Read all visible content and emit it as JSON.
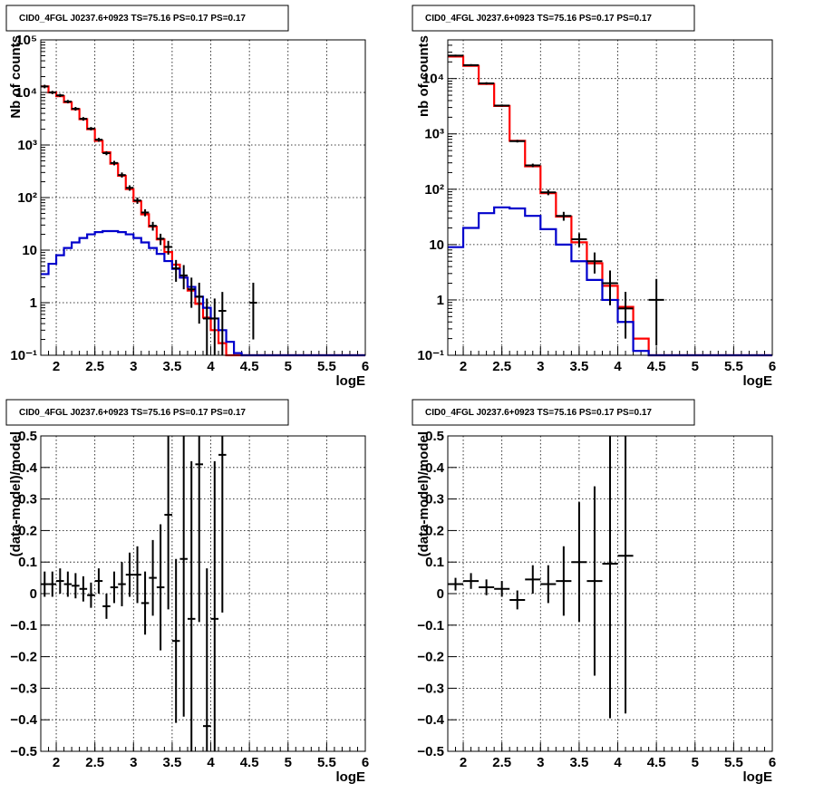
{
  "colors": {
    "total_model": "#ff0000",
    "source_model": "#0000cc",
    "data": "#000000",
    "background": "#ffffff"
  },
  "chart_data": [
    {
      "type": "step-histogram",
      "title": "CID0_4FGL J0237.6+0923 TS=75.16 PS=0.17 PS=0.17",
      "xlabel": "logE",
      "ylabel": "Nb of counts",
      "xlim": [
        1.8,
        6.0
      ],
      "ylim": [
        0.1,
        100000
      ],
      "yscale": "log",
      "grid": true,
      "x_ticks": [
        "2",
        "2.5",
        "3",
        "3.5",
        "4",
        "4.5",
        "5",
        "5.5",
        "6"
      ],
      "y_ticks": [
        "10⁻¹",
        "1",
        "10",
        "10²",
        "10³",
        "10⁴",
        "10⁵"
      ],
      "bin_edges": [
        1.8,
        1.9,
        2.0,
        2.1,
        2.2,
        2.3,
        2.4,
        2.5,
        2.6,
        2.7,
        2.8,
        2.9,
        3.0,
        3.1,
        3.2,
        3.3,
        3.4,
        3.5,
        3.6,
        3.7,
        3.8,
        3.9,
        4.0,
        4.1,
        4.2,
        4.3,
        4.4,
        4.5,
        4.6,
        4.7,
        4.8,
        4.9,
        5.0,
        5.1,
        5.2,
        5.3,
        5.4,
        5.5,
        5.6,
        5.7,
        5.8,
        5.9,
        6.0
      ],
      "series": [
        {
          "role": "total_model",
          "values": [
            13000,
            10000,
            8500,
            6500,
            4800,
            3100,
            2000,
            1200,
            730,
            440,
            260,
            145,
            85,
            48,
            28,
            16,
            9.2,
            5.3,
            3.0,
            1.7,
            0.95,
            0.52,
            0.3,
            0.17,
            0.1,
            0.1,
            0.1,
            0.1,
            0.1,
            0.1,
            0.1,
            0.1,
            0.1,
            0.1,
            0.1,
            0.1,
            0.1,
            0.1,
            0.1,
            0.1,
            0.1,
            0.1
          ]
        },
        {
          "role": "source_model",
          "values": [
            3.5,
            5.5,
            8,
            11,
            14,
            17,
            20,
            22,
            23,
            23,
            22,
            20,
            17,
            14,
            11,
            8.5,
            6.2,
            4.4,
            3.0,
            2.0,
            1.3,
            0.8,
            0.5,
            0.3,
            0.18,
            0.11,
            0.1,
            0.1,
            0.1,
            0.1,
            0.1,
            0.1,
            0.1,
            0.1,
            0.1,
            0.1,
            0.1,
            0.1,
            0.1,
            0.1,
            0.1,
            0.1
          ]
        },
        {
          "role": "data",
          "name": "",
          "points": [
            {
              "x": 1.85,
              "y": 13000,
              "lo": 12000,
              "hi": 14000
            },
            {
              "x": 1.95,
              "y": 10000,
              "lo": 9300,
              "hi": 10700
            },
            {
              "x": 2.05,
              "y": 8800,
              "lo": 8200,
              "hi": 9400
            },
            {
              "x": 2.15,
              "y": 6700,
              "lo": 6200,
              "hi": 7200
            },
            {
              "x": 2.25,
              "y": 4900,
              "lo": 4500,
              "hi": 5300
            },
            {
              "x": 2.35,
              "y": 3150,
              "lo": 2900,
              "hi": 3400
            },
            {
              "x": 2.45,
              "y": 2050,
              "lo": 1900,
              "hi": 2200
            },
            {
              "x": 2.55,
              "y": 1260,
              "lo": 1150,
              "hi": 1370
            },
            {
              "x": 2.65,
              "y": 700,
              "lo": 640,
              "hi": 760
            },
            {
              "x": 2.75,
              "y": 455,
              "lo": 410,
              "hi": 500
            },
            {
              "x": 2.85,
              "y": 268,
              "lo": 240,
              "hi": 300
            },
            {
              "x": 2.95,
              "y": 153,
              "lo": 135,
              "hi": 171
            },
            {
              "x": 3.05,
              "y": 88,
              "lo": 76,
              "hi": 100
            },
            {
              "x": 3.15,
              "y": 52,
              "lo": 44,
              "hi": 60
            },
            {
              "x": 3.25,
              "y": 29,
              "lo": 23.5,
              "hi": 34.5
            },
            {
              "x": 3.35,
              "y": 16.5,
              "lo": 12.5,
              "hi": 20.5
            },
            {
              "x": 3.45,
              "y": 11.5,
              "lo": 8.2,
              "hi": 15
            },
            {
              "x": 3.55,
              "y": 4.5,
              "lo": 2.5,
              "hi": 6.5
            },
            {
              "x": 3.65,
              "y": 3.3,
              "lo": 1.8,
              "hi": 5.2
            },
            {
              "x": 3.75,
              "y": 1.8,
              "lo": 0.8,
              "hi": 3.0
            },
            {
              "x": 3.85,
              "y": 1.3,
              "lo": 0.4,
              "hi": 2.4
            },
            {
              "x": 3.95,
              "y": 0.5,
              "lo": 0.1,
              "hi": 1.2
            },
            {
              "x": 4.05,
              "y": 0.5,
              "lo": 0.1,
              "hi": 1.2
            },
            {
              "x": 4.15,
              "y": 0.7,
              "lo": 0.1,
              "hi": 1.6
            },
            {
              "x": 4.55,
              "y": 1.0,
              "lo": 0.2,
              "hi": 2.4
            }
          ]
        }
      ]
    },
    {
      "type": "step-histogram",
      "title": "CID0_4FGL J0237.6+0923 TS=75.16 PS=0.17 PS=0.17",
      "xlabel": "logE",
      "ylabel": "nb of counts",
      "xlim": [
        1.8,
        6.0
      ],
      "ylim": [
        0.1,
        50000
      ],
      "yscale": "log",
      "grid": true,
      "x_ticks": [
        "2",
        "2.5",
        "3",
        "3.5",
        "4",
        "4.5",
        "5",
        "5.5",
        "6"
      ],
      "y_ticks": [
        "10⁻¹",
        "1",
        "10",
        "10²",
        "10³",
        "10⁴"
      ],
      "bin_edges": [
        1.8,
        2.0,
        2.2,
        2.4,
        2.6,
        2.8,
        3.0,
        3.2,
        3.4,
        3.6,
        3.8,
        4.0,
        4.2,
        4.4,
        4.6,
        4.8,
        5.0,
        5.2,
        5.4,
        5.6,
        5.8,
        6.0
      ],
      "series": [
        {
          "role": "total_model",
          "values": [
            25000,
            17000,
            8000,
            3200,
            750,
            260,
            85,
            32,
            11,
            4.6,
            1.8,
            0.75,
            0.2,
            0.1,
            0.1,
            0.1,
            0.1,
            0.1,
            0.1,
            0.1,
            0.1
          ]
        },
        {
          "role": "source_model",
          "values": [
            9,
            20,
            37,
            47,
            45,
            33,
            19,
            10,
            5,
            2.3,
            1.0,
            0.4,
            0.12,
            0.1,
            0.1,
            0.1,
            0.1,
            0.1,
            0.1,
            0.1,
            0.1
          ]
        },
        {
          "role": "data",
          "name": "",
          "points": [
            {
              "x": 1.9,
              "y": 26000,
              "lo": 25000,
              "hi": 27000
            },
            {
              "x": 2.1,
              "y": 17500,
              "lo": 16800,
              "hi": 18200
            },
            {
              "x": 2.3,
              "y": 8200,
              "lo": 7800,
              "hi": 8600
            },
            {
              "x": 2.5,
              "y": 3250,
              "lo": 3100,
              "hi": 3400
            },
            {
              "x": 2.7,
              "y": 740,
              "lo": 700,
              "hi": 780
            },
            {
              "x": 2.9,
              "y": 270,
              "lo": 250,
              "hi": 290
            },
            {
              "x": 3.1,
              "y": 88,
              "lo": 78,
              "hi": 98
            },
            {
              "x": 3.3,
              "y": 33,
              "lo": 27,
              "hi": 39
            },
            {
              "x": 3.5,
              "y": 12.5,
              "lo": 9,
              "hi": 16
            },
            {
              "x": 3.7,
              "y": 5,
              "lo": 3,
              "hi": 7.2
            },
            {
              "x": 3.9,
              "y": 2,
              "lo": 0.8,
              "hi": 3.4
            },
            {
              "x": 4.1,
              "y": 0.7,
              "lo": 0.2,
              "hi": 1.4
            },
            {
              "x": 4.5,
              "y": 1.0,
              "lo": 0.15,
              "hi": 2.4
            }
          ]
        }
      ]
    },
    {
      "type": "scatter-errorbars",
      "title": "CID0_4FGL J0237.6+0923 TS=75.16 PS=0.17 PS=0.17",
      "xlabel": "logE",
      "ylabel": "(data-model)/model",
      "xlim": [
        1.8,
        6.0
      ],
      "ylim": [
        -0.5,
        0.5
      ],
      "grid": true,
      "x_ticks": [
        "2",
        "2.5",
        "3",
        "3.5",
        "4",
        "4.5",
        "5",
        "5.5",
        "6"
      ],
      "y_ticks": [
        "−0.5",
        "−0.4",
        "−0.3",
        "−0.2",
        "−0.1",
        "0",
        "0.1",
        "0.2",
        "0.3",
        "0.4",
        "0.5"
      ],
      "xerr": 0.05,
      "points": [
        {
          "x": 1.85,
          "y": 0.03,
          "err": 0.04
        },
        {
          "x": 1.95,
          "y": 0.03,
          "err": 0.04
        },
        {
          "x": 2.05,
          "y": 0.04,
          "err": 0.04
        },
        {
          "x": 2.15,
          "y": 0.03,
          "err": 0.04
        },
        {
          "x": 2.25,
          "y": 0.025,
          "err": 0.04
        },
        {
          "x": 2.35,
          "y": 0.015,
          "err": 0.04
        },
        {
          "x": 2.45,
          "y": -0.005,
          "err": 0.04
        },
        {
          "x": 2.55,
          "y": 0.04,
          "err": 0.04
        },
        {
          "x": 2.65,
          "y": -0.04,
          "err": 0.04
        },
        {
          "x": 2.75,
          "y": 0.02,
          "err": 0.05
        },
        {
          "x": 2.85,
          "y": 0.03,
          "err": 0.07
        },
        {
          "x": 2.95,
          "y": 0.06,
          "err": 0.07
        },
        {
          "x": 3.05,
          "y": 0.06,
          "err": 0.09
        },
        {
          "x": 3.15,
          "y": -0.03,
          "err": 0.1
        },
        {
          "x": 3.25,
          "y": 0.05,
          "err": 0.12
        },
        {
          "x": 3.35,
          "y": 0.02,
          "err": 0.2
        },
        {
          "x": 3.45,
          "y": 0.25,
          "err": 0.3
        },
        {
          "x": 3.55,
          "y": -0.15,
          "err": 0.26
        },
        {
          "x": 3.65,
          "y": 0.11,
          "err": 0.5
        },
        {
          "x": 3.75,
          "y": -0.08,
          "err": 0.5
        },
        {
          "x": 3.85,
          "y": 0.41,
          "err": 0.5
        },
        {
          "x": 3.95,
          "y": -0.42,
          "err": 0.5
        },
        {
          "x": 4.05,
          "y": -0.08,
          "err": 0.5
        },
        {
          "x": 4.15,
          "y": 0.44,
          "err": 0.5
        }
      ]
    },
    {
      "type": "scatter-errorbars",
      "title": "CID0_4FGL J0237.6+0923 TS=75.16 PS=0.17 PS=0.17",
      "xlabel": "logE",
      "ylabel": "(data-model)/model",
      "xlim": [
        1.8,
        6.0
      ],
      "ylim": [
        -0.5,
        0.5
      ],
      "grid": true,
      "x_ticks": [
        "2",
        "2.5",
        "3",
        "3.5",
        "4",
        "4.5",
        "5",
        "5.5",
        "6"
      ],
      "y_ticks": [
        "−0.5",
        "−0.4",
        "−0.3",
        "−0.2",
        "−0.1",
        "0",
        "0.1",
        "0.2",
        "0.3",
        "0.4",
        "0.5"
      ],
      "xerr": 0.1,
      "points": [
        {
          "x": 1.9,
          "y": 0.03,
          "err": 0.02
        },
        {
          "x": 2.1,
          "y": 0.04,
          "err": 0.025
        },
        {
          "x": 2.3,
          "y": 0.02,
          "err": 0.025
        },
        {
          "x": 2.5,
          "y": 0.015,
          "err": 0.025
        },
        {
          "x": 2.7,
          "y": -0.02,
          "err": 0.03
        },
        {
          "x": 2.9,
          "y": 0.045,
          "err": 0.045
        },
        {
          "x": 3.1,
          "y": 0.03,
          "err": 0.06
        },
        {
          "x": 3.3,
          "y": 0.04,
          "err": 0.11
        },
        {
          "x": 3.5,
          "y": 0.1,
          "err": 0.19
        },
        {
          "x": 3.7,
          "y": 0.04,
          "err": 0.3
        },
        {
          "x": 3.9,
          "y": 0.095,
          "err": 0.49
        },
        {
          "x": 4.1,
          "y": 0.12,
          "err": 0.5
        }
      ]
    }
  ]
}
